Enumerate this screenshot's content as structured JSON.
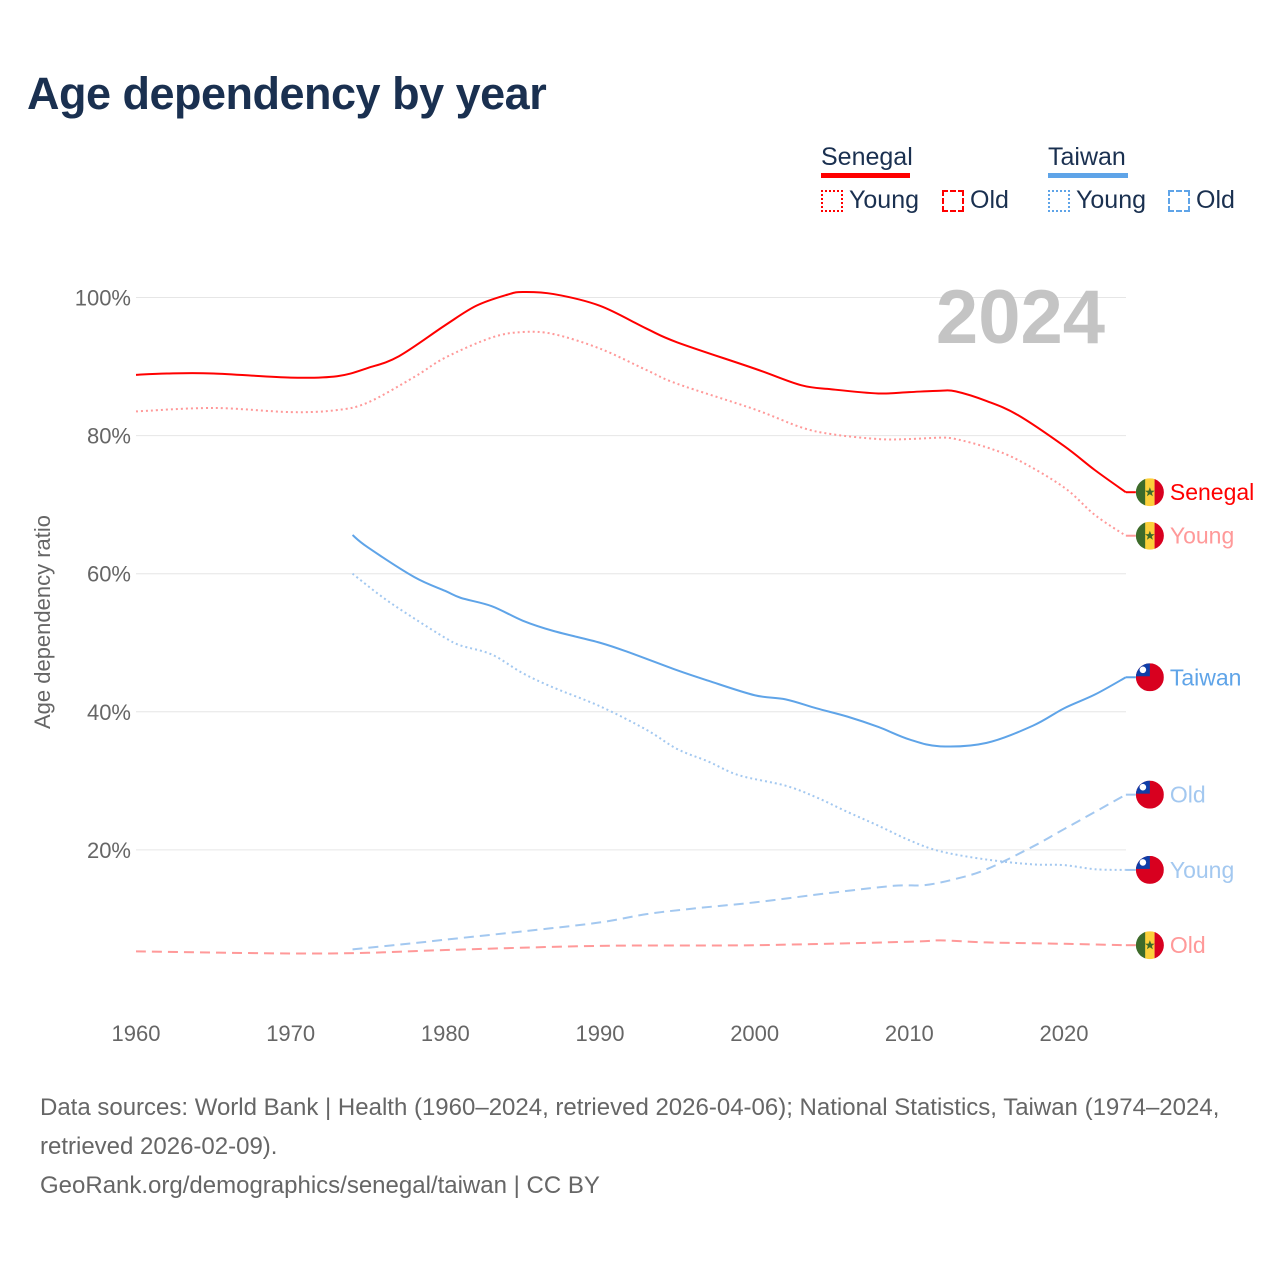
{
  "title": "Age dependency by year",
  "legend": {
    "countries": [
      {
        "name": "Senegal",
        "color": "#ff0000",
        "young": "Young",
        "old": "Old"
      },
      {
        "name": "Taiwan",
        "color": "#5fa4e8",
        "young": "Young",
        "old": "Old"
      }
    ]
  },
  "footer": {
    "sources": "Data sources: World Bank | Health (1960–2024, retrieved 2026-04-06); National Statistics, Taiwan (1974–2024, retrieved 2026-02-09).",
    "link": "GeoRank.org/demographics/senegal/taiwan | CC BY"
  },
  "chart_data": {
    "type": "line",
    "title": "Age dependency by year",
    "ylabel": "Age dependency ratio",
    "xlabel": "",
    "year_watermark": "2024",
    "xlim": [
      1960,
      2024
    ],
    "ylim": [
      0,
      100
    ],
    "x_ticks": [
      "1960",
      "1970",
      "1980",
      "1990",
      "2000",
      "2010",
      "2020"
    ],
    "y_ticks": [
      "20%",
      "40%",
      "60%",
      "80%",
      "100%"
    ],
    "grid": true,
    "series": [
      {
        "name": "Senegal",
        "end_label": "Senegal",
        "country": "senegal",
        "style": "solid",
        "color": "#ff0000",
        "x": [
          1960,
          1962,
          1965,
          1970,
          1973,
          1975,
          1977,
          1980,
          1982,
          1984,
          1985,
          1987,
          1990,
          1993,
          1995,
          2000,
          2003,
          2005,
          2008,
          2010,
          2012,
          2013,
          2015,
          2017,
          2020,
          2022,
          2024
        ],
        "y": [
          88.8,
          89.0,
          89.0,
          88.4,
          88.6,
          89.8,
          91.5,
          96.0,
          98.8,
          100.4,
          100.8,
          100.5,
          98.8,
          95.5,
          93.5,
          89.7,
          87.3,
          86.7,
          86.1,
          86.3,
          86.5,
          86.4,
          85.0,
          83.0,
          78.5,
          75.0,
          71.8
        ]
      },
      {
        "name": "Senegal Young",
        "end_label": "Young",
        "country": "senegal",
        "style": "dotted",
        "color": "#ff9999",
        "x": [
          1960,
          1965,
          1970,
          1973,
          1975,
          1978,
          1980,
          1983,
          1985,
          1987,
          1990,
          1993,
          1995,
          2000,
          2003,
          2005,
          2008,
          2010,
          2012,
          2013,
          2015,
          2017,
          2020,
          2022,
          2024
        ],
        "y": [
          83.5,
          84.0,
          83.4,
          83.7,
          84.8,
          88.5,
          91.3,
          94.2,
          95.0,
          94.7,
          92.6,
          89.5,
          87.5,
          83.8,
          81.2,
          80.2,
          79.5,
          79.5,
          79.7,
          79.5,
          78.3,
          76.5,
          72.5,
          68.5,
          65.5
        ]
      },
      {
        "name": "Senegal Old",
        "end_label": "Old",
        "country": "senegal",
        "style": "dashed",
        "color": "#ff9999",
        "x": [
          1960,
          1970,
          1975,
          1980,
          1990,
          2000,
          2010,
          2012,
          2015,
          2020,
          2024
        ],
        "y": [
          5.3,
          5.0,
          5.1,
          5.5,
          6.1,
          6.2,
          6.7,
          6.9,
          6.6,
          6.4,
          6.2
        ]
      },
      {
        "name": "Taiwan",
        "end_label": "Taiwan",
        "country": "taiwan",
        "style": "solid",
        "color": "#5fa4e8",
        "x": [
          1974,
          1975,
          1978,
          1980,
          1981,
          1983,
          1985,
          1987,
          1990,
          1992,
          1995,
          1997,
          2000,
          2002,
          2004,
          2006,
          2008,
          2010,
          2012,
          2015,
          2018,
          2020,
          2022,
          2024
        ],
        "y": [
          65.6,
          63.8,
          59.5,
          57.5,
          56.5,
          55.3,
          53.2,
          51.7,
          50.0,
          48.5,
          46.0,
          44.5,
          42.4,
          41.8,
          40.5,
          39.3,
          37.8,
          36.0,
          35.0,
          35.5,
          38.0,
          40.5,
          42.5,
          45.0
        ]
      },
      {
        "name": "Taiwan Old",
        "end_label": "Old",
        "country": "taiwan",
        "style": "dashed",
        "color": "#a3c8f0",
        "x": [
          1974,
          1978,
          1980,
          1985,
          1990,
          1993,
          1996,
          2000,
          2005,
          2009,
          2011,
          2013,
          2015,
          2018,
          2020,
          2024
        ],
        "y": [
          5.6,
          6.5,
          7.0,
          8.2,
          9.5,
          10.7,
          11.5,
          12.4,
          13.8,
          14.8,
          14.9,
          15.8,
          17.2,
          20.5,
          23.0,
          28.0
        ]
      },
      {
        "name": "Taiwan Young",
        "end_label": "Young",
        "country": "taiwan",
        "style": "dotted",
        "color": "#a3c8f0",
        "x": [
          1974,
          1976,
          1978,
          1980,
          1981,
          1983,
          1985,
          1987,
          1990,
          1993,
          1995,
          1997,
          1999,
          2002,
          2004,
          2006,
          2008,
          2010,
          2012,
          2015,
          2018,
          2020,
          2022,
          2024
        ],
        "y": [
          60.0,
          56.5,
          53.5,
          50.7,
          49.6,
          48.3,
          45.6,
          43.5,
          40.8,
          37.4,
          34.6,
          32.8,
          30.8,
          29.3,
          27.6,
          25.5,
          23.5,
          21.4,
          19.8,
          18.6,
          17.9,
          17.8,
          17.2,
          17.1
        ]
      }
    ]
  }
}
